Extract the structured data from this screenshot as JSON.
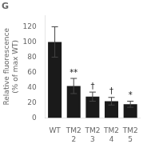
{
  "chart_data": {
    "type": "bar",
    "title": "G",
    "categories": [
      "WT",
      "TM2\n2",
      "TM2\n3",
      "TM2\n4",
      "TM2\n5"
    ],
    "values": [
      100,
      42,
      28,
      22,
      18
    ],
    "errors": [
      20,
      10,
      6,
      5,
      4
    ],
    "color": "#1a1a1a",
    "ylabel": "Relative fluorescence\n(% of max WT)",
    "ylim": [
      0,
      135
    ],
    "yticks": [
      0,
      20,
      40,
      60,
      80,
      100,
      120
    ],
    "grid": false,
    "annotations": [
      {
        "category": "TM2\n2",
        "text": "**"
      },
      {
        "category": "TM2\n3",
        "text": "†"
      },
      {
        "category": "TM2\n4",
        "text": "†"
      },
      {
        "category": "TM2\n5",
        "text": "*"
      }
    ]
  }
}
